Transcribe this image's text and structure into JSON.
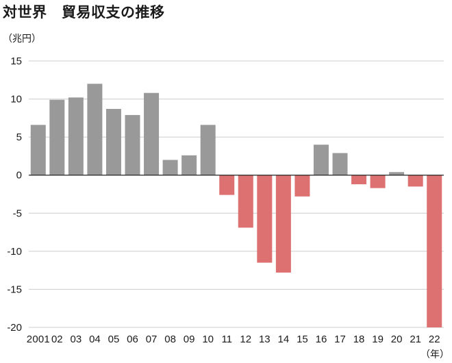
{
  "chart_data": {
    "type": "bar",
    "title": "対世界　貿易収支の推移",
    "y_unit": "（兆円）",
    "x_unit": "（年）",
    "categories": [
      "2001",
      "02",
      "03",
      "04",
      "05",
      "06",
      "07",
      "08",
      "09",
      "10",
      "11",
      "12",
      "13",
      "14",
      "15",
      "16",
      "17",
      "18",
      "19",
      "20",
      "21",
      "22"
    ],
    "values": [
      6.6,
      9.9,
      10.2,
      12.0,
      8.7,
      7.9,
      10.8,
      2.0,
      2.6,
      6.6,
      -2.6,
      -6.9,
      -11.5,
      -12.8,
      -2.8,
      4.0,
      2.9,
      -1.2,
      -1.7,
      0.4,
      -1.5,
      -20.0
    ],
    "ylim": [
      -20,
      15
    ],
    "yticks": [
      "15",
      "10",
      "5",
      "0",
      "-5",
      "-10",
      "-15",
      "-20"
    ],
    "grid": true,
    "colors": {
      "positive": "#999999",
      "negative": "#dd7070",
      "grid": "#cccccc",
      "axis": "#222222"
    }
  }
}
